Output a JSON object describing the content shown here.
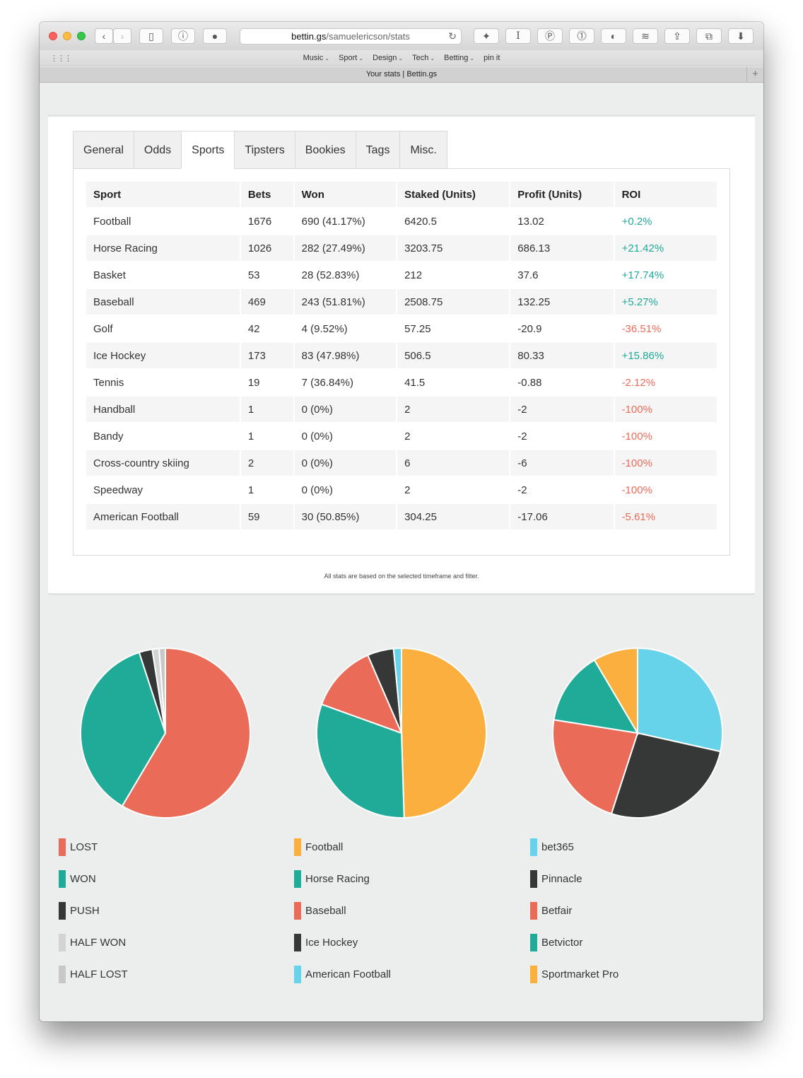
{
  "browser": {
    "url_host": "bettin.gs",
    "url_path": "/samuelericson/stats",
    "bookmarks": [
      "Music",
      "Sport",
      "Design",
      "Tech",
      "Betting",
      "pin it"
    ],
    "tab_title": "Your stats | Bettin.gs"
  },
  "tabs": [
    "General",
    "Odds",
    "Sports",
    "Tipsters",
    "Bookies",
    "Tags",
    "Misc."
  ],
  "active_tab": "Sports",
  "table": {
    "headers": [
      "Sport",
      "Bets",
      "Won",
      "Staked (Units)",
      "Profit (Units)",
      "ROI"
    ],
    "rows": [
      [
        "Football",
        "1676",
        "690 (41.17%)",
        "6420.5",
        "13.02",
        "+0.2%"
      ],
      [
        "Horse Racing",
        "1026",
        "282 (27.49%)",
        "3203.75",
        "686.13",
        "+21.42%"
      ],
      [
        "Basket",
        "53",
        "28 (52.83%)",
        "212",
        "37.6",
        "+17.74%"
      ],
      [
        "Baseball",
        "469",
        "243 (51.81%)",
        "2508.75",
        "132.25",
        "+5.27%"
      ],
      [
        "Golf",
        "42",
        "4 (9.52%)",
        "57.25",
        "-20.9",
        "-36.51%"
      ],
      [
        "Ice Hockey",
        "173",
        "83 (47.98%)",
        "506.5",
        "80.33",
        "+15.86%"
      ],
      [
        "Tennis",
        "19",
        "7 (36.84%)",
        "41.5",
        "-0.88",
        "-2.12%"
      ],
      [
        "Handball",
        "1",
        "0 (0%)",
        "2",
        "-2",
        "-100%"
      ],
      [
        "Bandy",
        "1",
        "0 (0%)",
        "2",
        "-2",
        "-100%"
      ],
      [
        "Cross-country skiing",
        "2",
        "0 (0%)",
        "6",
        "-6",
        "-100%"
      ],
      [
        "Speedway",
        "1",
        "0 (0%)",
        "2",
        "-2",
        "-100%"
      ],
      [
        "American Football",
        "59",
        "30 (50.85%)",
        "304.25",
        "-17.06",
        "-5.61%"
      ]
    ]
  },
  "footnote": "All stats are based on the selected timeframe and filter.",
  "colors": {
    "positive": "#1fa997",
    "negative": "#ea6b58"
  },
  "chart_data": [
    {
      "type": "pie",
      "title": "",
      "labels": [
        "LOST",
        "WON",
        "PUSH",
        "HALF WON",
        "HALF LOST"
      ],
      "values": [
        58.5,
        36.5,
        2.5,
        1.3,
        1.2
      ],
      "colors": [
        "#ea6b58",
        "#1fab98",
        "#363737",
        "#d3d3d3",
        "#c8c8c8"
      ]
    },
    {
      "type": "pie",
      "title": "",
      "labels": [
        "Football",
        "Horse Racing",
        "Baseball",
        "Ice Hockey",
        "American Football"
      ],
      "values": [
        49.5,
        31.0,
        13.0,
        5.0,
        1.5
      ],
      "colors": [
        "#fbaf3f",
        "#1fab98",
        "#ea6b58",
        "#363737",
        "#66d3ea"
      ]
    },
    {
      "type": "pie",
      "title": "",
      "labels": [
        "bet365",
        "Pinnacle",
        "Betfair",
        "Betvictor",
        "Sportmarket Pro"
      ],
      "values": [
        28.5,
        26.5,
        22.5,
        14.0,
        8.5
      ],
      "colors": [
        "#66d3ea",
        "#363737",
        "#ea6b58",
        "#1fab98",
        "#fbaf3f"
      ]
    }
  ]
}
